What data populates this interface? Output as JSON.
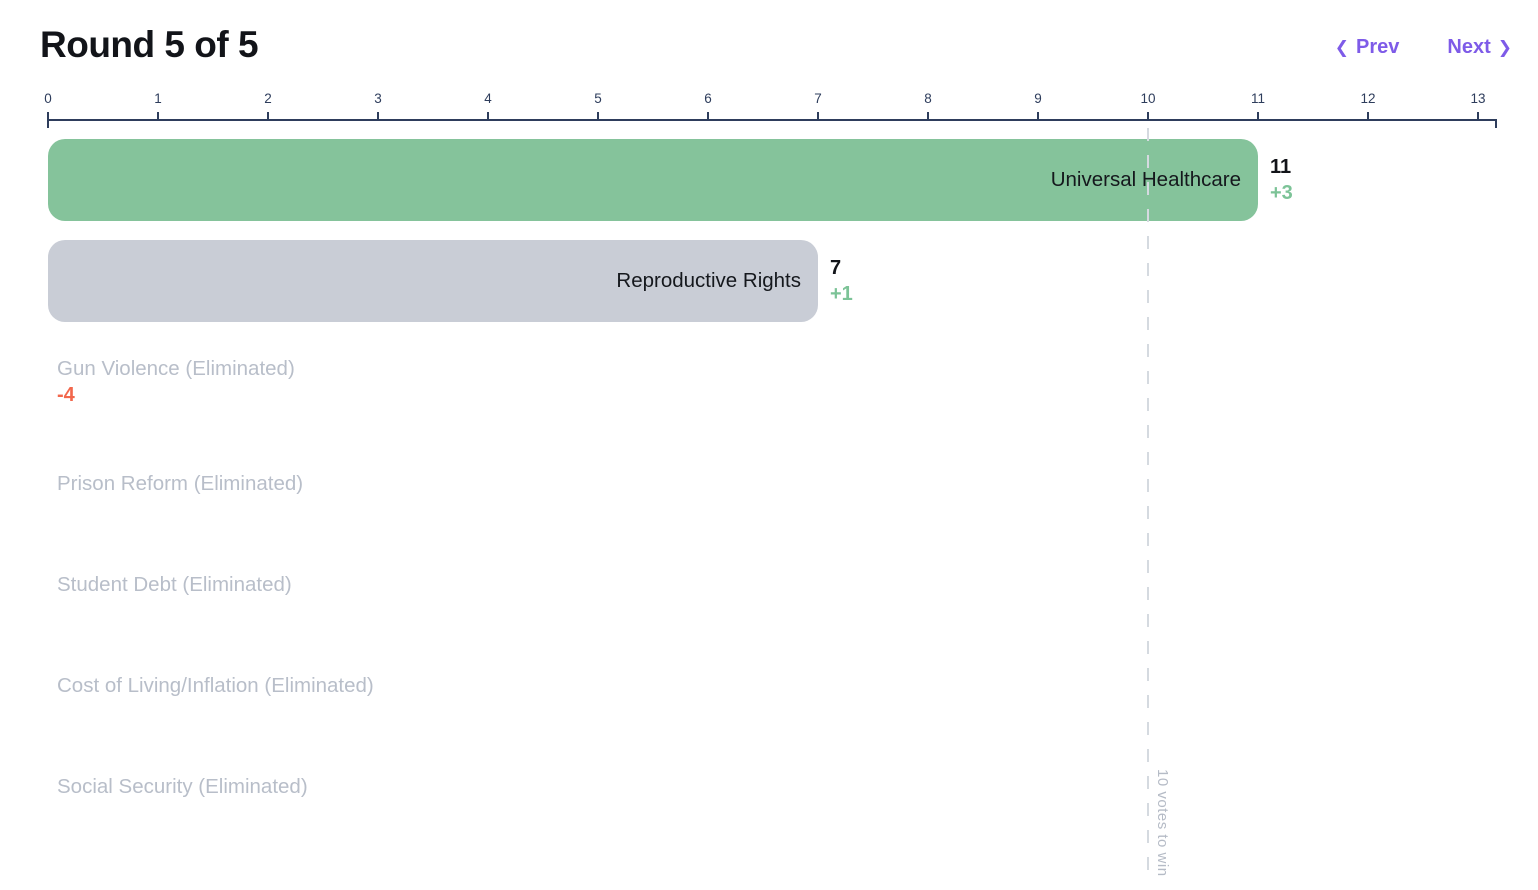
{
  "header": {
    "title": "Round 5 of 5",
    "prev": {
      "icon": "❮",
      "label": "Prev"
    },
    "next": {
      "label": "Next",
      "icon": "❯"
    }
  },
  "colors": {
    "leading_bar": "#85C39B",
    "active_bar": "#C9CDD6",
    "positive_delta": "#7CC397",
    "negative_delta": "#F2674C",
    "axis": "#2E3D5C",
    "eliminated_text": "#B8BEC9",
    "accent": "#7E5BE8",
    "threshold_line": "#D5DAE0",
    "text_dark": "#121419"
  },
  "chart_data": {
    "type": "bar",
    "orientation": "horizontal",
    "title": "Round 5 of 5",
    "xlim": [
      0,
      13
    ],
    "x_ticks": [
      0,
      1,
      2,
      3,
      4,
      5,
      6,
      7,
      8,
      9,
      10,
      11,
      12,
      13
    ],
    "grid": false,
    "threshold": {
      "value": 10,
      "label": "10 votes to win"
    },
    "rows": [
      {
        "label": "Universal Healthcare",
        "value": 11,
        "delta": "+3",
        "state": "leading"
      },
      {
        "label": "Reproductive Rights",
        "value": 7,
        "delta": "+1",
        "state": "active"
      },
      {
        "label": "Gun Violence (Eliminated)",
        "value": 0,
        "delta": "-4",
        "state": "eliminated"
      },
      {
        "label": "Prison Reform (Eliminated)",
        "value": 0,
        "delta": null,
        "state": "eliminated"
      },
      {
        "label": "Student Debt (Eliminated)",
        "value": 0,
        "delta": null,
        "state": "eliminated"
      },
      {
        "label": "Cost of Living/Inflation (Eliminated)",
        "value": 0,
        "delta": null,
        "state": "eliminated"
      },
      {
        "label": "Social Security (Eliminated)",
        "value": 0,
        "delta": null,
        "state": "eliminated"
      }
    ]
  }
}
